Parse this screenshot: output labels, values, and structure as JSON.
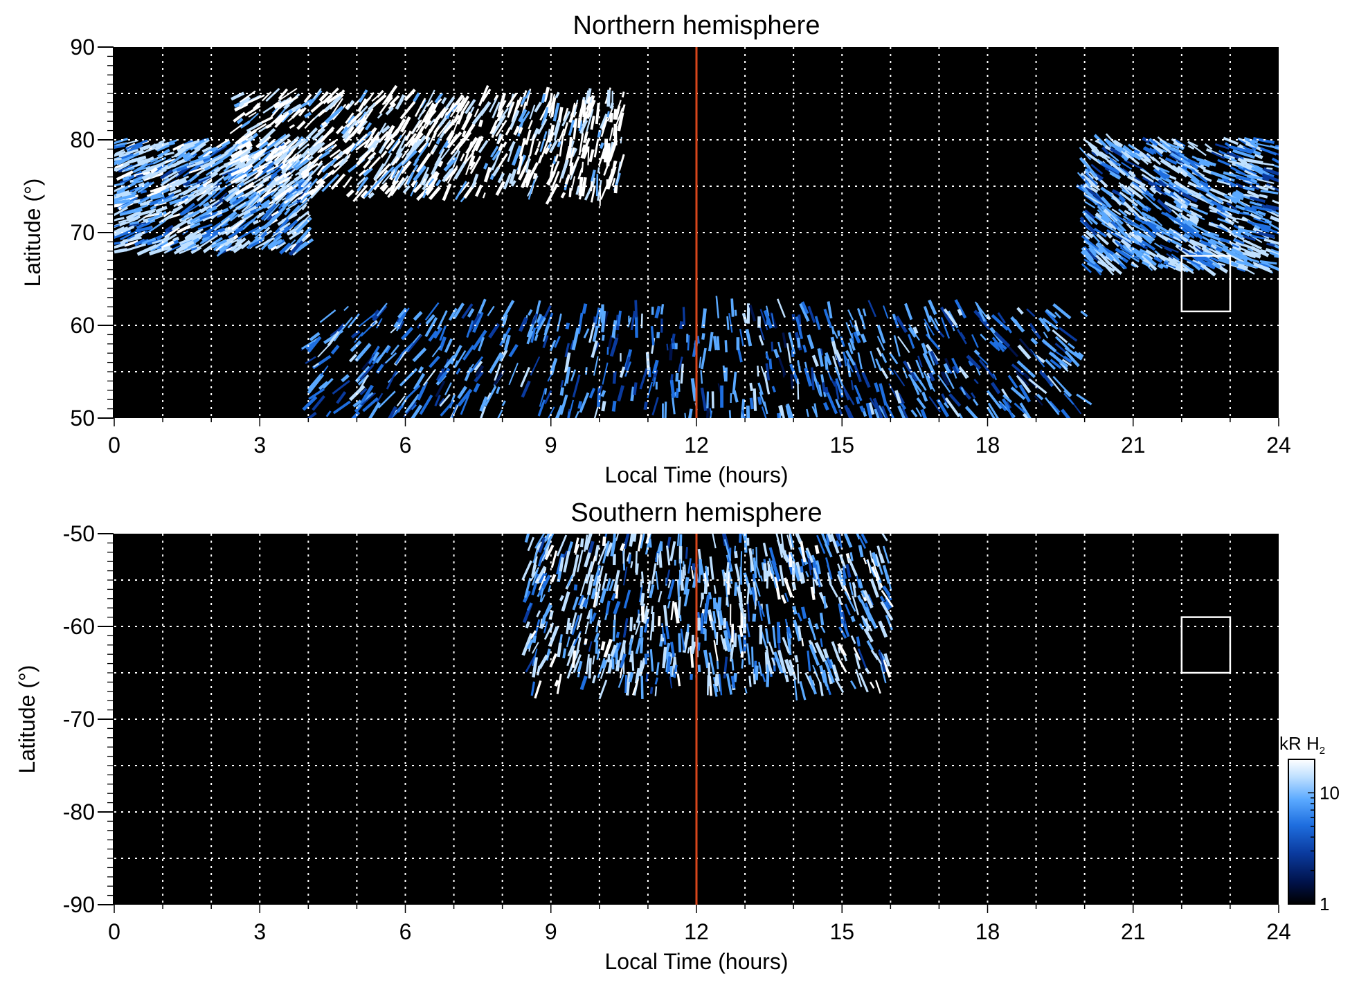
{
  "chart_data": [
    {
      "type": "heatmap",
      "title": "Northern hemisphere",
      "xlabel": "Local Time (hours)",
      "ylabel": "Latitude (°)",
      "xlim": [
        0,
        24
      ],
      "ylim": [
        50,
        90
      ],
      "xticks": [
        0,
        3,
        6,
        9,
        12,
        15,
        18,
        21,
        24
      ],
      "yticks": [
        50,
        60,
        70,
        80,
        90
      ],
      "grid": true,
      "grid_x_step_hours": 1,
      "grid_y_step_deg": 5,
      "noon_line": {
        "x": 12,
        "color": "#d8461b"
      },
      "highlight_box": {
        "x": [
          22,
          23
        ],
        "y": [
          61.5,
          67.5
        ],
        "color": "#ffffff"
      },
      "emission_regions": [
        {
          "label": "",
          "lt": [
            4.0,
            20.0
          ],
          "lat": [
            50,
            62
          ],
          "level_kR": 6
        },
        {
          "label": "",
          "lt": [
            0,
            4.0
          ],
          "lat": [
            68,
            80
          ],
          "level_kR": 10
        },
        {
          "label": "",
          "lt": [
            2.5,
            10.5
          ],
          "lat": [
            74,
            85
          ],
          "level_kR": 20
        },
        {
          "label": "",
          "lt": [
            20.0,
            24
          ],
          "lat": [
            66,
            80
          ],
          "level_kR": 8
        }
      ]
    },
    {
      "type": "heatmap",
      "title": "Southern hemisphere",
      "xlabel": "Local Time (hours)",
      "ylabel": "Latitude (°)",
      "xlim": [
        0,
        24
      ],
      "ylim": [
        -90,
        -50
      ],
      "xticks": [
        0,
        3,
        6,
        9,
        12,
        15,
        18,
        21,
        24
      ],
      "yticks": [
        -90,
        -80,
        -70,
        -60,
        -50
      ],
      "grid": true,
      "grid_x_step_hours": 1,
      "grid_y_step_deg": 5,
      "noon_line": {
        "x": 12,
        "color": "#d8461b"
      },
      "highlight_box": {
        "x": [
          22,
          23
        ],
        "y": [
          -65,
          -59
        ],
        "color": "#ffffff"
      },
      "emission_regions": [
        {
          "label": "",
          "lt": [
            8.5,
            16.0
          ],
          "lat": [
            -67,
            -50
          ],
          "level_kR": 10
        }
      ]
    }
  ],
  "colorbar": {
    "title": "kR H",
    "title_subscript": "2",
    "scale": "log",
    "range": [
      1,
      20
    ],
    "tick_labels": [
      "10",
      "1"
    ],
    "tick_values": [
      10,
      1
    ],
    "colors": [
      "#000000",
      "#00124a",
      "#0a3a9e",
      "#1f6fe0",
      "#5aa9ff",
      "#bfe0ff",
      "#ffffff"
    ]
  }
}
